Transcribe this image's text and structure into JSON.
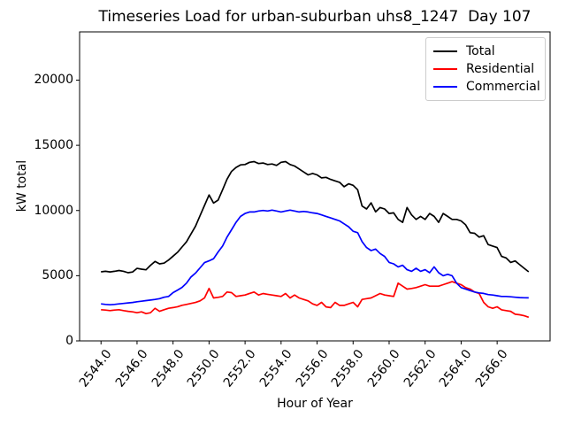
{
  "chart_data": {
    "type": "line",
    "title": "Timeseries Load for urban-suburban uhs8_1247  Day 107",
    "xlabel": "Hour of Year",
    "ylabel": "kW total",
    "grid": false,
    "legend_position": "upper right",
    "x_start": 2544.0,
    "x_step": 0.25,
    "xlim": [
      2542.81,
      2568.94
    ],
    "ylim": [
      0,
      23700
    ],
    "xticks": {
      "values": [
        2544,
        2546,
        2548,
        2550,
        2552,
        2554,
        2556,
        2558,
        2560,
        2562,
        2564,
        2566
      ],
      "labels": [
        "2544.0",
        "2546.0",
        "2548.0",
        "2550.0",
        "2552.0",
        "2554.0",
        "2556.0",
        "2558.0",
        "2560.0",
        "2562.0",
        "2564.0",
        "2566.0"
      ]
    },
    "yticks": {
      "values": [
        0,
        5000,
        10000,
        15000,
        20000
      ],
      "labels": [
        "0",
        "5000",
        "10000",
        "15000",
        "20000"
      ]
    },
    "series": [
      {
        "name": "Total",
        "color": "#000000",
        "values": [
          5300,
          5340,
          5290,
          5340,
          5400,
          5340,
          5230,
          5280,
          5560,
          5500,
          5450,
          5800,
          6090,
          5910,
          5960,
          6200,
          6500,
          6800,
          7200,
          7600,
          8200,
          8800,
          9600,
          10400,
          11190,
          10570,
          10800,
          11590,
          12400,
          13000,
          13300,
          13500,
          13530,
          13700,
          13750,
          13600,
          13640,
          13530,
          13570,
          13460,
          13700,
          13750,
          13530,
          13410,
          13185,
          12960,
          12730,
          12840,
          12730,
          12500,
          12545,
          12385,
          12270,
          12160,
          11820,
          12045,
          11930,
          11590,
          10340,
          10115,
          10590,
          9900,
          10230,
          10115,
          9770,
          9820,
          9320,
          9090,
          10230,
          9660,
          9320,
          9550,
          9320,
          9770,
          9545,
          9090,
          9770,
          9545,
          9320,
          9320,
          9200,
          8900,
          8300,
          8250,
          7960,
          8070,
          7390,
          7270,
          7160,
          6480,
          6365,
          6020,
          6135,
          5850,
          5570,
          5300
        ]
      },
      {
        "name": "Residential",
        "color": "#ff0000",
        "values": [
          2390,
          2360,
          2320,
          2360,
          2390,
          2320,
          2270,
          2230,
          2160,
          2230,
          2090,
          2160,
          2500,
          2270,
          2390,
          2500,
          2550,
          2620,
          2730,
          2800,
          2870,
          2950,
          3070,
          3300,
          4020,
          3295,
          3340,
          3410,
          3750,
          3700,
          3410,
          3460,
          3520,
          3640,
          3750,
          3520,
          3635,
          3570,
          3520,
          3460,
          3410,
          3635,
          3295,
          3520,
          3295,
          3180,
          3070,
          2840,
          2725,
          2955,
          2610,
          2550,
          2955,
          2725,
          2725,
          2840,
          2955,
          2615,
          3180,
          3240,
          3295,
          3460,
          3635,
          3520,
          3460,
          3410,
          4430,
          4200,
          3975,
          4020,
          4090,
          4200,
          4315,
          4200,
          4200,
          4200,
          4315,
          4430,
          4545,
          4430,
          4315,
          4090,
          3975,
          3750,
          3635,
          2955,
          2615,
          2500,
          2615,
          2385,
          2320,
          2270,
          2045,
          2000,
          1930,
          1815
        ]
      },
      {
        "name": "Commercial",
        "color": "#0000ff",
        "values": [
          2840,
          2800,
          2770,
          2800,
          2840,
          2870,
          2910,
          2950,
          3000,
          3040,
          3090,
          3130,
          3180,
          3240,
          3350,
          3410,
          3700,
          3900,
          4100,
          4430,
          4900,
          5200,
          5600,
          6000,
          6140,
          6300,
          6820,
          7270,
          7960,
          8520,
          9090,
          9545,
          9770,
          9890,
          9890,
          9960,
          10000,
          9960,
          10030,
          9960,
          9890,
          9960,
          10030,
          9960,
          9890,
          9930,
          9890,
          9820,
          9770,
          9660,
          9550,
          9430,
          9320,
          9200,
          8980,
          8750,
          8410,
          8300,
          7610,
          7160,
          6930,
          7045,
          6700,
          6480,
          6020,
          5910,
          5680,
          5800,
          5460,
          5340,
          5570,
          5340,
          5460,
          5230,
          5680,
          5230,
          5000,
          5110,
          5000,
          4430,
          4090,
          3980,
          3860,
          3750,
          3680,
          3640,
          3550,
          3520,
          3460,
          3410,
          3410,
          3380,
          3350,
          3320,
          3310,
          3300
        ]
      }
    ]
  }
}
